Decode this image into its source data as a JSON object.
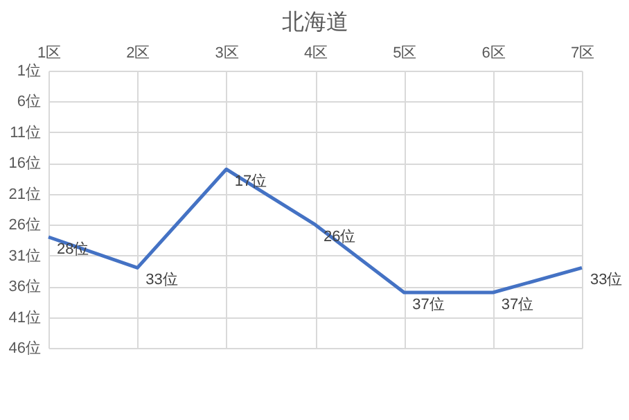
{
  "chart_data": {
    "type": "line",
    "title": "北海道",
    "categories": [
      "1区",
      "2区",
      "3区",
      "4区",
      "5区",
      "6区",
      "7区"
    ],
    "series": [
      {
        "color": "#4472c4",
        "values": [
          28,
          33,
          17,
          26,
          37,
          37,
          33
        ],
        "value_labels": [
          "28位",
          "33位",
          "17位",
          "26位",
          "37位",
          "37位",
          "33位"
        ]
      }
    ],
    "ylim": [
      46,
      1
    ],
    "yticks": [
      {
        "value": 1,
        "label": "1位"
      },
      {
        "value": 6,
        "label": "6位"
      },
      {
        "value": 11,
        "label": "11位"
      },
      {
        "value": 16,
        "label": "16位"
      },
      {
        "value": 21,
        "label": "21位"
      },
      {
        "value": 26,
        "label": "26位"
      },
      {
        "value": 31,
        "label": "31位"
      },
      {
        "value": 36,
        "label": "36位"
      },
      {
        "value": 41,
        "label": "41位"
      },
      {
        "value": 46,
        "label": "46位"
      }
    ],
    "grid": true,
    "marker": "none",
    "line_style": "solid"
  }
}
